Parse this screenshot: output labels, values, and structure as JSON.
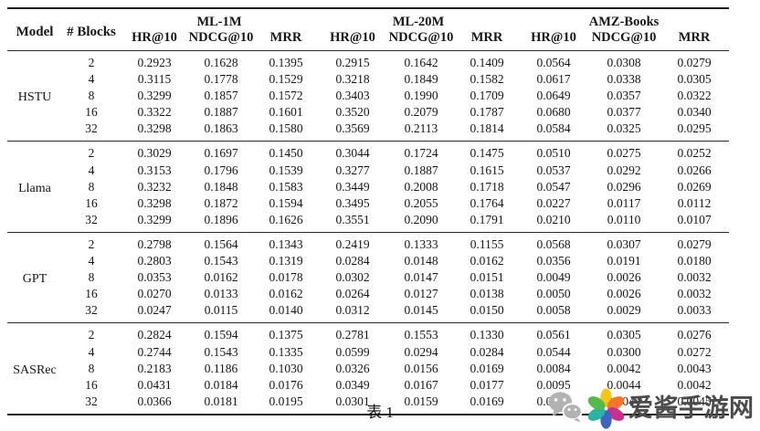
{
  "table": {
    "caption": "表 1",
    "headers": {
      "model": "Model",
      "blocks": "# Blocks",
      "groups": [
        {
          "label": "ML-1M",
          "metrics": [
            "HR@10",
            "NDCG@10",
            "MRR"
          ]
        },
        {
          "label": "ML-20M",
          "metrics": [
            "HR@10",
            "NDCG@10",
            "MRR"
          ]
        },
        {
          "label": "AMZ-Books",
          "metrics": [
            "HR@10",
            "NDCG@10",
            "MRR"
          ]
        }
      ]
    },
    "groups": [
      {
        "model": "HSTU",
        "rows": [
          {
            "blocks": "2",
            "values": [
              "0.2923",
              "0.1628",
              "0.1395",
              "0.2915",
              "0.1642",
              "0.1409",
              "0.0564",
              "0.0308",
              "0.0279"
            ]
          },
          {
            "blocks": "4",
            "values": [
              "0.3115",
              "0.1778",
              "0.1529",
              "0.3218",
              "0.1849",
              "0.1582",
              "0.0617",
              "0.0338",
              "0.0305"
            ]
          },
          {
            "blocks": "8",
            "values": [
              "0.3299",
              "0.1857",
              "0.1572",
              "0.3403",
              "0.1990",
              "0.1709",
              "0.0649",
              "0.0357",
              "0.0322"
            ]
          },
          {
            "blocks": "16",
            "values": [
              "0.3322",
              "0.1887",
              "0.1601",
              "0.3520",
              "0.2079",
              "0.1787",
              "0.0680",
              "0.0377",
              "0.0340"
            ]
          },
          {
            "blocks": "32",
            "values": [
              "0.3298",
              "0.1863",
              "0.1580",
              "0.3569",
              "0.2113",
              "0.1814",
              "0.0584",
              "0.0325",
              "0.0295"
            ]
          }
        ]
      },
      {
        "model": "Llama",
        "rows": [
          {
            "blocks": "2",
            "values": [
              "0.3029",
              "0.1697",
              "0.1450",
              "0.3044",
              "0.1724",
              "0.1475",
              "0.0510",
              "0.0275",
              "0.0252"
            ]
          },
          {
            "blocks": "4",
            "values": [
              "0.3153",
              "0.1796",
              "0.1539",
              "0.3277",
              "0.1887",
              "0.1615",
              "0.0537",
              "0.0292",
              "0.0266"
            ]
          },
          {
            "blocks": "8",
            "values": [
              "0.3232",
              "0.1848",
              "0.1583",
              "0.3449",
              "0.2008",
              "0.1718",
              "0.0547",
              "0.0296",
              "0.0269"
            ]
          },
          {
            "blocks": "16",
            "values": [
              "0.3298",
              "0.1872",
              "0.1594",
              "0.3495",
              "0.2055",
              "0.1764",
              "0.0227",
              "0.0117",
              "0.0112"
            ]
          },
          {
            "blocks": "32",
            "values": [
              "0.3299",
              "0.1896",
              "0.1626",
              "0.3551",
              "0.2090",
              "0.1791",
              "0.0210",
              "0.0110",
              "0.0107"
            ]
          }
        ]
      },
      {
        "model": "GPT",
        "rows": [
          {
            "blocks": "2",
            "values": [
              "0.2798",
              "0.1564",
              "0.1343",
              "0.2419",
              "0.1333",
              "0.1155",
              "0.0568",
              "0.0307",
              "0.0279"
            ]
          },
          {
            "blocks": "4",
            "values": [
              "0.2803",
              "0.1543",
              "0.1319",
              "0.0284",
              "0.0148",
              "0.0162",
              "0.0356",
              "0.0191",
              "0.0180"
            ]
          },
          {
            "blocks": "8",
            "values": [
              "0.0353",
              "0.0162",
              "0.0178",
              "0.0302",
              "0.0147",
              "0.0151",
              "0.0049",
              "0.0026",
              "0.0032"
            ]
          },
          {
            "blocks": "16",
            "values": [
              "0.0270",
              "0.0133",
              "0.0162",
              "0.0264",
              "0.0127",
              "0.0138",
              "0.0050",
              "0.0026",
              "0.0032"
            ]
          },
          {
            "blocks": "32",
            "values": [
              "0.0247",
              "0.0115",
              "0.0140",
              "0.0312",
              "0.0145",
              "0.0150",
              "0.0058",
              "0.0029",
              "0.0033"
            ]
          }
        ]
      },
      {
        "model": "SASRec",
        "rows": [
          {
            "blocks": "2",
            "values": [
              "0.2824",
              "0.1594",
              "0.1375",
              "0.2781",
              "0.1553",
              "0.1330",
              "0.0561",
              "0.0305",
              "0.0276"
            ]
          },
          {
            "blocks": "4",
            "values": [
              "0.2744",
              "0.1543",
              "0.1335",
              "0.0599",
              "0.0294",
              "0.0284",
              "0.0544",
              "0.0300",
              "0.0272"
            ]
          },
          {
            "blocks": "8",
            "values": [
              "0.2183",
              "0.1186",
              "0.1030",
              "0.0326",
              "0.0156",
              "0.0169",
              "0.0084",
              "0.0042",
              "0.0043"
            ]
          },
          {
            "blocks": "16",
            "values": [
              "0.0431",
              "0.0184",
              "0.0176",
              "0.0349",
              "0.0167",
              "0.0177",
              "0.0095",
              "0.0044",
              "0.0042"
            ]
          },
          {
            "blocks": "32",
            "values": [
              "0.0366",
              "0.0181",
              "0.0195",
              "0.0301",
              "0.0159",
              "0.0169",
              "0.0084",
              "0.0044",
              "0.0045"
            ]
          }
        ]
      }
    ]
  },
  "watermark": {
    "text": "爱酱手游网",
    "text_color": "#4b4b4b",
    "wechat_icon_color": "#b2b2b2",
    "petal_colors": [
      "#f7c515",
      "#f4772a",
      "#cc2e8e",
      "#3e63c0",
      "#2cb3a6",
      "#52b94a"
    ]
  }
}
